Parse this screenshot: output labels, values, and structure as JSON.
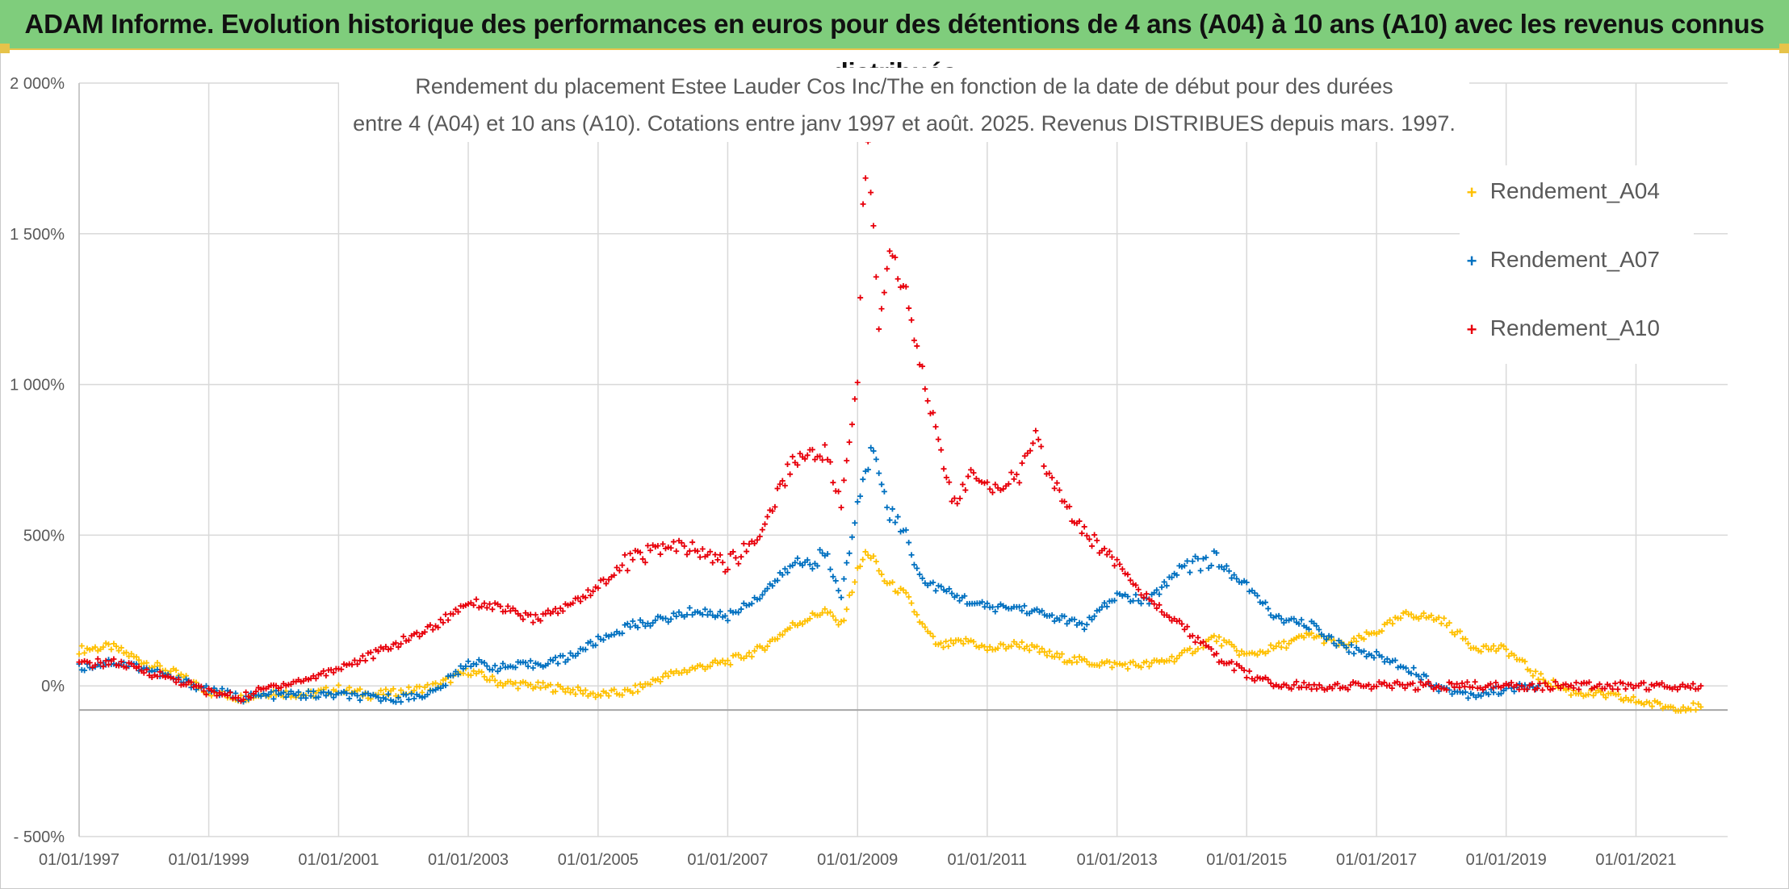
{
  "page": {
    "banner_title": "ADAM Informe. Evolution historique des performances en euros pour des détentions de 4 ans (A04) à 10 ans (A10) avec les revenus connus distribués",
    "banner_color": "#7fcd7c",
    "accent_color": "#e6c34a"
  },
  "chart_data": {
    "type": "scatter",
    "title_line1": "Rendement du placement Estee Lauder Cos Inc/The en fonction de la date de début pour des durées",
    "title_line2": "entre 4 (A04) et 10 ans (A10). Cotations entre janv 1997 et août. 2025. Revenus DISTRIBUES depuis mars. 1997.",
    "xlabel": "",
    "ylabel": "",
    "x_type": "date",
    "xlim": [
      "1997-01-01",
      "2022-06-01"
    ],
    "ylim": [
      -500,
      2000
    ],
    "y_ticks": [
      -500,
      0,
      500,
      1000,
      1500,
      2000
    ],
    "y_tick_labels": [
      "- 500%",
      "0%",
      "500%",
      "1 000%",
      "1 500%",
      "2 000%"
    ],
    "x_ticks": [
      "1997-01-01",
      "1999-01-01",
      "2001-01-01",
      "2003-01-01",
      "2005-01-01",
      "2007-01-01",
      "2009-01-01",
      "2011-01-01",
      "2013-01-01",
      "2015-01-01",
      "2017-01-01",
      "2019-01-01",
      "2021-01-01"
    ],
    "x_tick_labels": [
      "01/01/1997",
      "01/01/1999",
      "01/01/2001",
      "01/01/2003",
      "01/01/2005",
      "01/01/2007",
      "01/01/2009",
      "01/01/2011",
      "01/01/2013",
      "01/01/2015",
      "01/01/2017",
      "01/01/2019",
      "01/01/2021"
    ],
    "grid": true,
    "legend_position": "right",
    "marker": "+",
    "series": [
      {
        "name": "Rendement_A04",
        "color": "#ffc000",
        "points": [
          [
            "1997-01-01",
            120
          ],
          [
            "1997-07-01",
            130
          ],
          [
            "1998-01-01",
            80
          ],
          [
            "1998-07-01",
            40
          ],
          [
            "1999-01-01",
            -20
          ],
          [
            "1999-07-01",
            -40
          ],
          [
            "2000-01-01",
            -20
          ],
          [
            "2000-07-01",
            -30
          ],
          [
            "2001-01-01",
            -10
          ],
          [
            "2001-07-01",
            -30
          ],
          [
            "2002-01-01",
            -20
          ],
          [
            "2002-07-01",
            0
          ],
          [
            "2003-01-01",
            50
          ],
          [
            "2003-07-01",
            10
          ],
          [
            "2004-01-01",
            0
          ],
          [
            "2004-07-01",
            -10
          ],
          [
            "2005-01-01",
            -30
          ],
          [
            "2005-07-01",
            -20
          ],
          [
            "2006-01-01",
            30
          ],
          [
            "2006-07-01",
            60
          ],
          [
            "2007-01-01",
            80
          ],
          [
            "2007-07-01",
            120
          ],
          [
            "2008-01-01",
            200
          ],
          [
            "2008-07-01",
            250
          ],
          [
            "2008-10-01",
            200
          ],
          [
            "2009-01-01",
            380
          ],
          [
            "2009-03-01",
            450
          ],
          [
            "2009-06-01",
            350
          ],
          [
            "2009-10-01",
            300
          ],
          [
            "2010-01-01",
            200
          ],
          [
            "2010-04-01",
            130
          ],
          [
            "2010-10-01",
            150
          ],
          [
            "2011-01-01",
            120
          ],
          [
            "2011-07-01",
            140
          ],
          [
            "2012-01-01",
            100
          ],
          [
            "2012-07-01",
            80
          ],
          [
            "2013-01-01",
            70
          ],
          [
            "2013-07-01",
            70
          ],
          [
            "2014-01-01",
            100
          ],
          [
            "2014-07-01",
            160
          ],
          [
            "2015-01-01",
            100
          ],
          [
            "2015-07-01",
            130
          ],
          [
            "2016-01-01",
            170
          ],
          [
            "2016-07-01",
            130
          ],
          [
            "2017-01-01",
            180
          ],
          [
            "2017-07-01",
            240
          ],
          [
            "2018-01-01",
            220
          ],
          [
            "2018-07-01",
            130
          ],
          [
            "2019-01-01",
            120
          ],
          [
            "2019-07-01",
            30
          ],
          [
            "2020-01-01",
            -20
          ],
          [
            "2020-07-01",
            -30
          ],
          [
            "2021-01-01",
            -50
          ],
          [
            "2021-07-01",
            -70
          ],
          [
            "2022-01-01",
            -70
          ]
        ]
      },
      {
        "name": "Rendement_A07",
        "color": "#0070c0",
        "points": [
          [
            "1997-01-01",
            60
          ],
          [
            "1997-07-01",
            80
          ],
          [
            "1998-01-01",
            60
          ],
          [
            "1998-07-01",
            20
          ],
          [
            "1999-01-01",
            -10
          ],
          [
            "1999-07-01",
            -40
          ],
          [
            "2000-01-01",
            -30
          ],
          [
            "2000-07-01",
            -30
          ],
          [
            "2001-01-01",
            -30
          ],
          [
            "2001-07-01",
            -40
          ],
          [
            "2002-01-01",
            -40
          ],
          [
            "2002-07-01",
            -20
          ],
          [
            "2003-01-01",
            80
          ],
          [
            "2003-07-01",
            60
          ],
          [
            "2004-01-01",
            70
          ],
          [
            "2004-07-01",
            90
          ],
          [
            "2005-01-01",
            150
          ],
          [
            "2005-07-01",
            200
          ],
          [
            "2006-01-01",
            220
          ],
          [
            "2006-07-01",
            250
          ],
          [
            "2007-01-01",
            230
          ],
          [
            "2007-07-01",
            300
          ],
          [
            "2008-01-01",
            400
          ],
          [
            "2008-07-01",
            430
          ],
          [
            "2008-10-01",
            300
          ],
          [
            "2009-01-01",
            600
          ],
          [
            "2009-04-01",
            800
          ],
          [
            "2009-07-01",
            580
          ],
          [
            "2009-10-01",
            500
          ],
          [
            "2010-01-01",
            350
          ],
          [
            "2010-07-01",
            300
          ],
          [
            "2011-01-01",
            260
          ],
          [
            "2011-07-01",
            260
          ],
          [
            "2012-01-01",
            230
          ],
          [
            "2012-07-01",
            200
          ],
          [
            "2013-01-01",
            300
          ],
          [
            "2013-07-01",
            280
          ],
          [
            "2014-01-01",
            400
          ],
          [
            "2014-07-01",
            420
          ],
          [
            "2015-01-01",
            330
          ],
          [
            "2015-07-01",
            220
          ],
          [
            "2016-01-01",
            200
          ],
          [
            "2016-07-01",
            130
          ],
          [
            "2017-01-01",
            100
          ],
          [
            "2017-07-01",
            60
          ],
          [
            "2018-01-01",
            -10
          ],
          [
            "2018-07-01",
            -30
          ],
          [
            "2019-01-01",
            -10
          ],
          [
            "2019-07-01",
            0
          ]
        ]
      },
      {
        "name": "Rendement_A10",
        "color": "#e8000b",
        "points": [
          [
            "1997-01-01",
            70
          ],
          [
            "1997-07-01",
            80
          ],
          [
            "1998-01-01",
            50
          ],
          [
            "1998-07-01",
            20
          ],
          [
            "1999-01-01",
            -20
          ],
          [
            "1999-07-01",
            -40
          ],
          [
            "2000-01-01",
            0
          ],
          [
            "2000-07-01",
            20
          ],
          [
            "2001-01-01",
            60
          ],
          [
            "2001-07-01",
            100
          ],
          [
            "2002-01-01",
            150
          ],
          [
            "2002-07-01",
            200
          ],
          [
            "2003-01-01",
            280
          ],
          [
            "2003-07-01",
            260
          ],
          [
            "2004-01-01",
            220
          ],
          [
            "2004-07-01",
            260
          ],
          [
            "2005-01-01",
            330
          ],
          [
            "2005-07-01",
            420
          ],
          [
            "2006-01-01",
            460
          ],
          [
            "2006-07-01",
            450
          ],
          [
            "2007-01-01",
            400
          ],
          [
            "2007-07-01",
            500
          ],
          [
            "2008-01-01",
            750
          ],
          [
            "2008-07-01",
            780
          ],
          [
            "2008-10-01",
            600
          ],
          [
            "2009-01-01",
            1000
          ],
          [
            "2009-02-01",
            1600
          ],
          [
            "2009-03-01",
            1800
          ],
          [
            "2009-05-01",
            1200
          ],
          [
            "2009-07-01",
            1450
          ],
          [
            "2009-10-01",
            1300
          ],
          [
            "2010-01-01",
            1050
          ],
          [
            "2010-04-01",
            800
          ],
          [
            "2010-07-01",
            600
          ],
          [
            "2010-10-01",
            700
          ],
          [
            "2011-01-01",
            650
          ],
          [
            "2011-07-01",
            700
          ],
          [
            "2011-10-01",
            820
          ],
          [
            "2012-01-01",
            680
          ],
          [
            "2012-07-01",
            500
          ],
          [
            "2013-01-01",
            420
          ],
          [
            "2013-07-01",
            280
          ],
          [
            "2014-01-01",
            200
          ],
          [
            "2014-07-01",
            100
          ],
          [
            "2015-01-01",
            40
          ],
          [
            "2015-07-01",
            0
          ],
          [
            "2016-01-01",
            0
          ],
          [
            "2017-01-01",
            0
          ],
          [
            "2018-01-01",
            0
          ],
          [
            "2019-01-01",
            0
          ],
          [
            "2020-01-01",
            0
          ],
          [
            "2021-01-01",
            0
          ],
          [
            "2022-01-01",
            0
          ]
        ]
      }
    ]
  }
}
